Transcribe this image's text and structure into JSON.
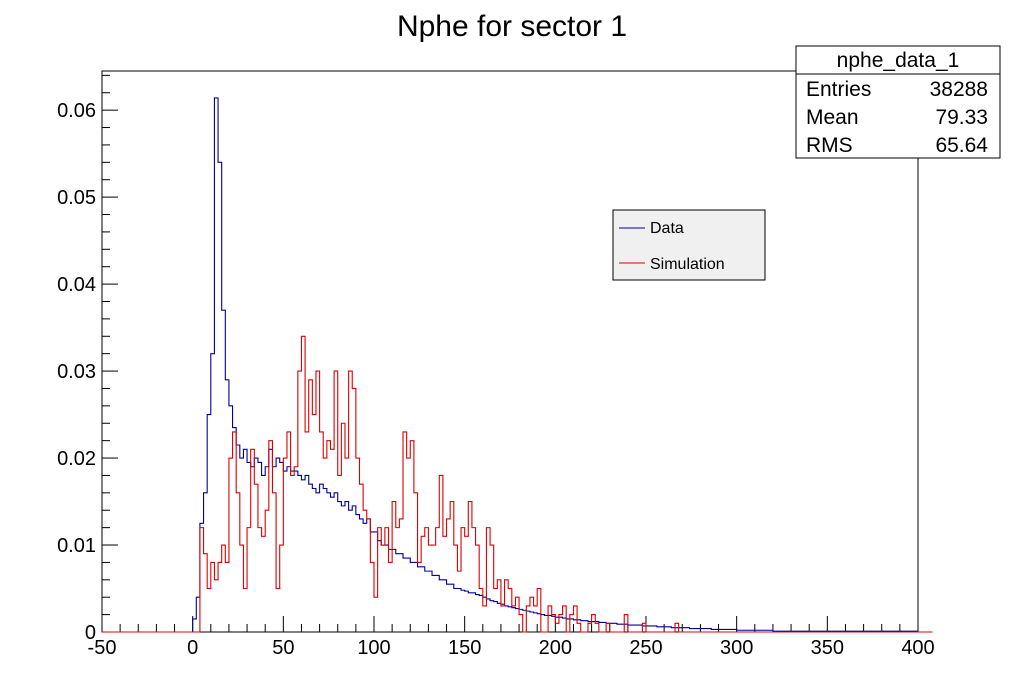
{
  "chart_data": {
    "type": "histogram",
    "title": "Nphe for sector 1",
    "xlabel": "",
    "ylabel": "",
    "xlim": [
      -50,
      400
    ],
    "ylim": [
      0,
      0.0645
    ],
    "bin_width": 5,
    "x_ticks": [
      -50,
      0,
      50,
      100,
      150,
      200,
      250,
      300,
      350,
      400
    ],
    "x_tick_labels": [
      "-50",
      "0",
      "50",
      "100",
      "150",
      "200",
      "250",
      "300",
      "350",
      "400"
    ],
    "y_ticks": [
      0,
      0.01,
      0.02,
      0.03,
      0.04,
      0.05,
      0.06
    ],
    "y_tick_labels": [
      "0",
      "0.01",
      "0.02",
      "0.03",
      "0.04",
      "0.05",
      "0.06"
    ],
    "stats_box": {
      "name": "nphe_data_1",
      "rows": [
        {
          "label": "Entries",
          "value": "38288"
        },
        {
          "label": "Mean",
          "value": "79.33"
        },
        {
          "label": "RMS",
          "value": "65.64"
        }
      ]
    },
    "legend": {
      "position": "top-right",
      "entries": [
        {
          "label": "Data",
          "color": "#000099"
        },
        {
          "label": "Simulation",
          "color": "#dd0000"
        }
      ]
    },
    "series": [
      {
        "name": "Data",
        "color": "#000099",
        "x_start": 0,
        "bin_width": 2,
        "values": [
          0.0015,
          0.004,
          0.0125,
          0.016,
          0.025,
          0.032,
          0.0614,
          0.054,
          0.037,
          0.029,
          0.026,
          0.0235,
          0.0215,
          0.02,
          0.021,
          0.0195,
          0.019,
          0.02,
          0.0195,
          0.018,
          0.019,
          0.021,
          0.019,
          0.02,
          0.0195,
          0.0185,
          0.019,
          0.0185,
          0.0185,
          0.018,
          0.0175,
          0.018,
          0.017,
          0.0165,
          0.016,
          0.017,
          0.0165,
          0.016,
          0.0155,
          0.016,
          0.015,
          0.0145,
          0.015,
          0.014,
          0.0145,
          0.0135,
          0.013,
          0.0125,
          0.013,
          0.0115,
          0.0115,
          0.0105,
          0.01,
          0.01,
          0.0095,
          0.0095,
          0.009,
          0.009,
          0.0085,
          0.0085,
          0.008,
          0.008,
          0.0075,
          0.0075,
          0.007,
          0.007,
          0.0065,
          0.0065,
          0.006,
          0.006,
          0.0055,
          0.0055,
          0.005,
          0.005,
          0.0048,
          0.0047,
          0.0045,
          0.0045,
          0.0043,
          0.0042,
          0.004,
          0.0038,
          0.0036,
          0.0035,
          0.0033,
          0.0032,
          0.003,
          0.0029,
          0.0028,
          0.0027,
          0.0026,
          0.0025,
          0.0024,
          0.0023,
          0.0022,
          0.0021,
          0.002,
          0.0019,
          0.0019,
          0.0018,
          0.0017,
          0.0017,
          0.0016,
          0.0015,
          0.0015,
          0.0014,
          0.0014,
          0.0013,
          0.0013,
          0.0012,
          0.0012,
          0.0012,
          0.0011,
          0.0011,
          0.001,
          0.001,
          0.001,
          0.0009,
          0.0009,
          0.0009,
          0.0008,
          0.0008,
          0.0008,
          0.0008,
          0.0007,
          0.0007,
          0.0007,
          0.0007,
          0.0006,
          0.0006,
          0.0006,
          0.0006,
          0.0005,
          0.0005,
          0.0005,
          0.0005,
          0.0005,
          0.0004,
          0.0004,
          0.0004,
          0.0004,
          0.0004,
          0.0004,
          0.0003,
          0.0003,
          0.0003,
          0.0003,
          0.0003,
          0.0003,
          0.0003,
          0.0002,
          0.0002,
          0.0002,
          0.0002,
          0.0002,
          0.0002,
          0.0002,
          0.0002,
          0.0002,
          0.0002,
          0.0001,
          0.0001,
          0.0001,
          0.0001,
          0.0001,
          0.0001,
          0.0001,
          0.0001,
          0.0001,
          0.0001,
          0.0001,
          0.0001,
          0.0001,
          0.0001,
          0.0001,
          0.0001,
          0.0001,
          0.0001,
          0.0001,
          0.0001,
          0.0001,
          0.0001,
          0.0001,
          0.0001,
          0.0001,
          0.0001,
          0.0001,
          0.0001,
          0.0001,
          0.0001,
          0.0001,
          0.0001,
          0.0001,
          0.0001,
          0.0001,
          0.0001,
          0.0001,
          0.0001,
          0.0001,
          0.0001
        ]
      },
      {
        "name": "Simulation",
        "color": "#dd0000",
        "x_start": 0,
        "bin_width": 2,
        "values": [
          0.0,
          0.0,
          0.012,
          0.009,
          0.005,
          0.008,
          0.006,
          0.008,
          0.01,
          0.008,
          0.02,
          0.023,
          0.016,
          0.01,
          0.005,
          0.012,
          0.021,
          0.017,
          0.012,
          0.011,
          0.014,
          0.022,
          0.016,
          0.005,
          0.01,
          0.02,
          0.023,
          0.018,
          0.019,
          0.03,
          0.034,
          0.023,
          0.029,
          0.025,
          0.03,
          0.023,
          0.02,
          0.022,
          0.021,
          0.03,
          0.018,
          0.024,
          0.02,
          0.03,
          0.028,
          0.02,
          0.017,
          0.014,
          0.013,
          0.008,
          0.004,
          0.012,
          0.01,
          0.012,
          0.008,
          0.015,
          0.012,
          0.013,
          0.023,
          0.02,
          0.022,
          0.016,
          0.008,
          0.011,
          0.012,
          0.01,
          0.01,
          0.012,
          0.018,
          0.011,
          0.013,
          0.015,
          0.01,
          0.007,
          0.012,
          0.011,
          0.015,
          0.012,
          0.01,
          0.005,
          0.003,
          0.012,
          0.01,
          0.005,
          0.006,
          0.003,
          0.006,
          0.005,
          0.003,
          0.004,
          0.002,
          0.0,
          0.003,
          0.004,
          0.003,
          0.005,
          0.0,
          0.0,
          0.003,
          0.002,
          0.001,
          0.002,
          0.003,
          0.0,
          0.002,
          0.003,
          0.001,
          0.0,
          0.0,
          0.001,
          0.002,
          0.001,
          0.0,
          0.0,
          0.001,
          0.0,
          0.0,
          0.0,
          0.0,
          0.002,
          0.0,
          0.0,
          0.0,
          0.0,
          0.001,
          0.0,
          0.0,
          0.0,
          0.0,
          0.0,
          0.0,
          0.0,
          0.0,
          0.001,
          0.0,
          0.0,
          0.0,
          0.0,
          0.0,
          0.0,
          0.0,
          0.0,
          0.0,
          0.0,
          0.0,
          0.0,
          0.0,
          0.0,
          0.0,
          0.0,
          0.0,
          0.0,
          0.0,
          0.0,
          0.0,
          0.0,
          0.0,
          0.0,
          0.0,
          0.0,
          0.0,
          0.0,
          0.0,
          0.0,
          0.0,
          0.0,
          0.0,
          0.0,
          0.0,
          0.0,
          0.0,
          0.0,
          0.0,
          0.0,
          0.0,
          0.0,
          0.0,
          0.0,
          0.0,
          0.0,
          0.0,
          0.0,
          0.0,
          0.0,
          0.0,
          0.0,
          0.0,
          0.0,
          0.0,
          0.0,
          0.0,
          0.0,
          0.0,
          0.0,
          0.0,
          0.0,
          0.0,
          0.0,
          0.0,
          0.0,
          0.0,
          0.0,
          0.0,
          0.0
        ]
      }
    ]
  }
}
